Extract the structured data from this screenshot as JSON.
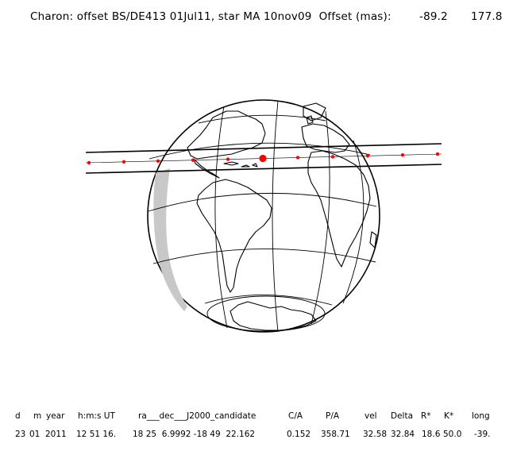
{
  "header": {
    "title": "Charon: offset BS/DE413 01Jul11, star MA 10nov09  Offset (mas):",
    "offset_x": "-89.2",
    "offset_y": "177.8"
  },
  "table": {
    "columns": [
      "d",
      "m",
      "year",
      "h:m:s UT",
      "ra___dec___J2000_candidate",
      "C/A",
      "P/A",
      "vel",
      "Delta",
      "R*",
      "K*",
      "long"
    ],
    "row": [
      "23",
      "01",
      "2011",
      "12 51 16.",
      "18 25  6.9992 -18 49  22.162",
      "0.152",
      "358.71",
      "32.58",
      "32.84",
      "18.6",
      "50.0",
      "-39."
    ]
  },
  "colors": {
    "background": "#ffffff",
    "lines": "#000000",
    "path_points": "#ff0000",
    "night_shade": "#c8c8c8"
  }
}
